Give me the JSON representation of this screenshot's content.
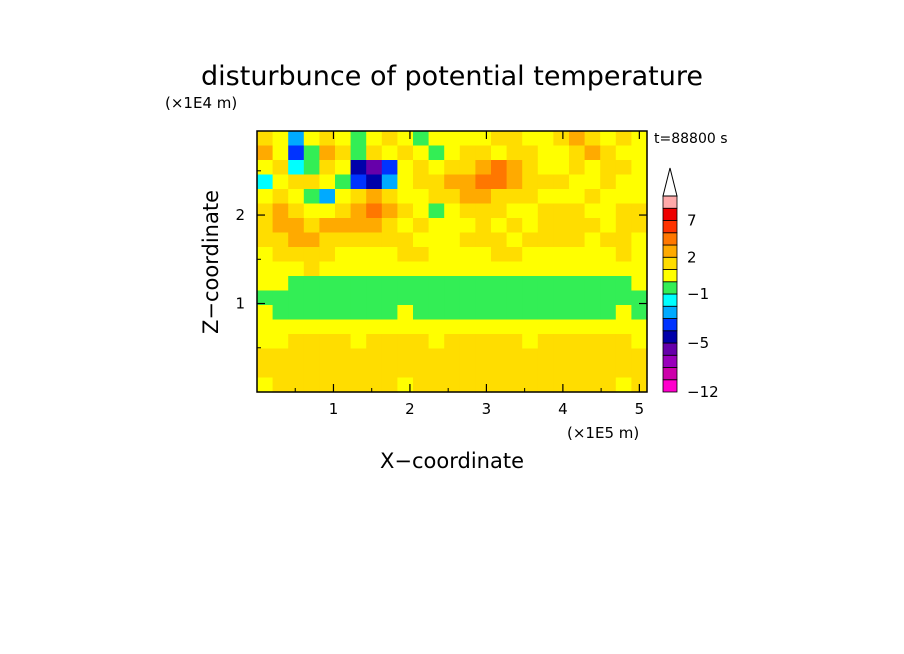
{
  "chart_data": {
    "type": "heatmap",
    "title": "disturbunce of potential temperature",
    "xlabel": "X−coordinate",
    "ylabel": "Z−coordinate",
    "x_scale_label": "(×1E5 m)",
    "y_scale_label": "(×1E4 m)",
    "time_label": "t=88800 s",
    "xlim": [
      0,
      5.1
    ],
    "ylim": [
      0,
      2.95
    ],
    "x_ticks": [
      1,
      2,
      3,
      4,
      5
    ],
    "x_tick_labels": [
      "1",
      "2",
      "3",
      "4",
      "5"
    ],
    "y_ticks": [
      1,
      2
    ],
    "y_tick_labels": [
      "1",
      "2"
    ],
    "colorbar": {
      "levels": [
        -12,
        -10,
        -8,
        -6,
        -5,
        -4,
        -3,
        -2,
        -1,
        0,
        1,
        2,
        3,
        5,
        7,
        9,
        11
      ],
      "tick_labels": [
        {
          "value": -12,
          "label": "−12"
        },
        {
          "value": -5,
          "label": "−5"
        },
        {
          "value": -1,
          "label": "−1"
        },
        {
          "value": 2,
          "label": "2"
        },
        {
          "value": 7,
          "label": "7"
        }
      ],
      "colors": [
        "#ff00cc",
        "#cc00aa",
        "#9900bb",
        "#6600aa",
        "#0000aa",
        "#0033ff",
        "#00aaff",
        "#00ffff",
        "#33ee55",
        "#ffff00",
        "#ffdd00",
        "#ffaa00",
        "#ff7700",
        "#ff3300",
        "#ee0000",
        "#ffaaaa"
      ],
      "extend_top_color": "#ffffff"
    },
    "field": {
      "description_units": "K",
      "rows_z_top_to_bottom": [
        [
          1,
          0,
          -3,
          0,
          1,
          0,
          -1,
          0,
          1,
          0,
          -1,
          0,
          0,
          0,
          0,
          1,
          1,
          0,
          0,
          1,
          2,
          1,
          0,
          1,
          0
        ],
        [
          2,
          0,
          -4,
          -1,
          2,
          1,
          -1,
          1,
          0,
          1,
          0,
          -1,
          0,
          1,
          1,
          0,
          1,
          1,
          0,
          0,
          1,
          2,
          1,
          0,
          0
        ],
        [
          0,
          1,
          -2,
          -1,
          1,
          0,
          -5,
          -6,
          -4,
          0,
          1,
          0,
          1,
          1,
          2,
          3,
          2,
          1,
          0,
          0,
          1,
          0,
          1,
          1,
          0
        ],
        [
          -2,
          0,
          1,
          1,
          0,
          -1,
          -4,
          -5,
          -3,
          0,
          1,
          1,
          2,
          2,
          3,
          3,
          2,
          1,
          1,
          1,
          0,
          0,
          1,
          0,
          0
        ],
        [
          0,
          1,
          0,
          -1,
          -3,
          0,
          1,
          2,
          1,
          0,
          0,
          1,
          1,
          2,
          2,
          1,
          1,
          1,
          0,
          0,
          0,
          1,
          0,
          0,
          0
        ],
        [
          1,
          2,
          1,
          0,
          0,
          1,
          2,
          3,
          2,
          1,
          0,
          -1,
          0,
          1,
          1,
          1,
          0,
          0,
          1,
          1,
          1,
          0,
          0,
          1,
          1
        ],
        [
          1,
          2,
          2,
          1,
          2,
          2,
          2,
          2,
          1,
          0,
          1,
          0,
          0,
          0,
          1,
          0,
          1,
          0,
          1,
          1,
          1,
          1,
          0,
          1,
          1
        ],
        [
          1,
          1,
          2,
          2,
          1,
          1,
          1,
          1,
          1,
          1,
          0,
          0,
          0,
          1,
          1,
          1,
          0,
          1,
          1,
          1,
          1,
          0,
          1,
          1,
          0
        ],
        [
          0,
          1,
          1,
          1,
          1,
          0,
          0,
          0,
          0,
          1,
          1,
          0,
          0,
          0,
          0,
          1,
          1,
          0,
          0,
          0,
          0,
          0,
          0,
          1,
          0
        ],
        [
          0,
          0,
          0,
          1,
          0,
          0,
          0,
          0,
          0,
          0,
          0,
          0,
          0,
          0,
          0,
          0,
          0,
          0,
          0,
          0,
          0,
          0,
          0,
          0,
          0
        ],
        [
          0,
          0,
          -1,
          -1,
          -1,
          -1,
          -1,
          -1,
          -1,
          -1,
          -1,
          -1,
          -1,
          -1,
          -1,
          -1,
          -1,
          -1,
          -1,
          -1,
          -1,
          -1,
          -1,
          -1,
          0
        ],
        [
          -1,
          -1,
          -1,
          -1,
          -1,
          -1,
          -1,
          -1,
          -1,
          -1,
          -1,
          -1,
          -1,
          -1,
          -1,
          -1,
          -1,
          -1,
          -1,
          -1,
          -1,
          -1,
          -1,
          -1,
          -1
        ],
        [
          0,
          -1,
          -1,
          -1,
          -1,
          -1,
          -1,
          -1,
          -1,
          0,
          -1,
          -1,
          -1,
          -1,
          -1,
          -1,
          -1,
          -1,
          -1,
          -1,
          -1,
          -1,
          -1,
          0,
          -1
        ],
        [
          0,
          0,
          0,
          0,
          0,
          0,
          0,
          0,
          0,
          0,
          0,
          0,
          0,
          0,
          0,
          0,
          0,
          0,
          0,
          0,
          0,
          0,
          0,
          0,
          0
        ],
        [
          0,
          0,
          1,
          1,
          1,
          1,
          0,
          1,
          1,
          1,
          1,
          0,
          1,
          1,
          1,
          1,
          1,
          0,
          1,
          1,
          1,
          1,
          1,
          1,
          0
        ],
        [
          1,
          1,
          1,
          1,
          1,
          1,
          1,
          1,
          1,
          1,
          1,
          1,
          1,
          1,
          1,
          1,
          1,
          1,
          1,
          1,
          1,
          1,
          1,
          1,
          1
        ],
        [
          1,
          1,
          1,
          1,
          1,
          1,
          1,
          1,
          1,
          1,
          1,
          1,
          1,
          1,
          1,
          1,
          1,
          1,
          1,
          1,
          1,
          1,
          1,
          1,
          1
        ],
        [
          0,
          1,
          1,
          1,
          1,
          1,
          1,
          1,
          1,
          0,
          1,
          1,
          1,
          1,
          1,
          1,
          1,
          1,
          1,
          1,
          1,
          1,
          1,
          0,
          1
        ]
      ]
    }
  }
}
